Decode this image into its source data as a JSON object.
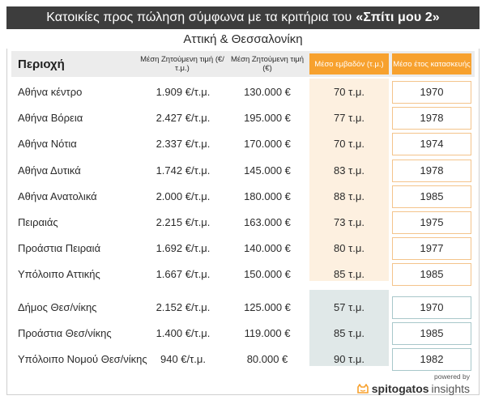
{
  "title": {
    "prefix": "Κατοικίες προς πώληση σύμφωνα με τα κριτήρια του",
    "highlight": "«Σπίτι μου 2»"
  },
  "subtitle": "Αττική & Θεσσαλονίκη",
  "columns": {
    "region": "Περιοχή",
    "price_sqm": "Μέση Ζητούμενη τιμή (€/τ.μ.)",
    "price_total": "Μέση Ζητούμενη τιμή (€)",
    "area": "Μέσο εμβαδόν (τ.μ.)",
    "year": "Μέσο έτος κατασκευής"
  },
  "rows": [
    {
      "region": "Αθήνα κέντρο",
      "price_sqm": "1.909 €/τ.μ.",
      "price_total": "130.000 €",
      "area": "70 τ.μ.",
      "year": "1970"
    },
    {
      "region": "Αθήνα Βόρεια",
      "price_sqm": "2.427 €/τ.μ.",
      "price_total": "195.000 €",
      "area": "77 τ.μ.",
      "year": "1978"
    },
    {
      "region": "Αθήνα Νότια",
      "price_sqm": "2.337 €/τ.μ.",
      "price_total": "170.000 €",
      "area": "70 τ.μ.",
      "year": "1974"
    },
    {
      "region": "Αθήνα Δυτικά",
      "price_sqm": "1.742 €/τ.μ.",
      "price_total": "145.000 €",
      "area": "83 τ.μ.",
      "year": "1978"
    },
    {
      "region": "Αθήνα Ανατολικά",
      "price_sqm": "2.000 €/τ.μ.",
      "price_total": "180.000 €",
      "area": "88 τ.μ.",
      "year": "1985"
    },
    {
      "region": "Πειραιάς",
      "price_sqm": "2.215 €/τ.μ.",
      "price_total": "163.000 €",
      "area": "73 τ.μ.",
      "year": "1975"
    },
    {
      "region": "Προάστια Πειραιά",
      "price_sqm": "1.692 €/τ.μ.",
      "price_total": "140.000 €",
      "area": "80 τ.μ.",
      "year": "1977"
    },
    {
      "region": "Υπόλοιπο Αττικής",
      "price_sqm": "1.667 €/τ.μ.",
      "price_total": "150.000 €",
      "area": "85 τ.μ.",
      "year": "1985"
    },
    {
      "region": "Δήμος Θεσ/νίκης",
      "price_sqm": "2.152 €/τ.μ.",
      "price_total": "125.000 €",
      "area": "57 τ.μ.",
      "year": "1970"
    },
    {
      "region": "Προάστια Θεσ/νίκης",
      "price_sqm": "1.400 €/τ.μ.",
      "price_total": "119.000 €",
      "area": "85 τ.μ.",
      "year": "1985"
    },
    {
      "region": "Υπόλοιπο Νομού Θεσ/νίκης",
      "price_sqm": "940 €/τ.μ.",
      "price_total": "80.000 €",
      "area": "90 τ.μ.",
      "year": "1982"
    }
  ],
  "footer": {
    "powered_by": "powered by",
    "brand": "spitogatos",
    "brand_suffix": "insights"
  },
  "colors": {
    "title_bg": "#3d3d3d",
    "accent_orange": "#f7a12e",
    "area_band_attica": "#fdf0e0",
    "area_band_thess": "#e0e8e8"
  }
}
